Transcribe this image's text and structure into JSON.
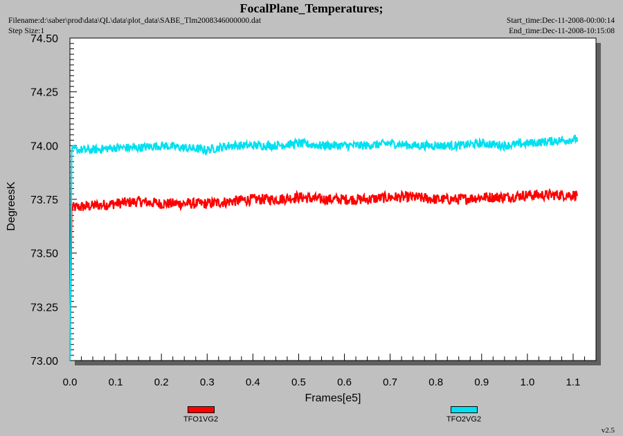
{
  "header": {
    "title": "FocalPlane_Temperatures;",
    "filename": "Filename:d:\\saber\\prod\\data\\QL\\data\\plot_data\\SABE_Tlm2008346000000.dat",
    "step_size": "Step Size:1",
    "start_time": "Start_time:Dec-11-2008-00:00:14",
    "end_time": "End_time:Dec-11-2008-10:15:08"
  },
  "footer": {
    "version": "v2.5"
  },
  "chart_data": {
    "type": "line",
    "title": "FocalPlane_Temperatures;",
    "xlabel": "Frames[e5]",
    "ylabel": "DegreesK",
    "xlim": [
      0.0,
      1.15
    ],
    "ylim": [
      73.0,
      74.5
    ],
    "xticks": [
      "0.0",
      "0.1",
      "0.2",
      "0.3",
      "0.4",
      "0.5",
      "0.6",
      "0.7",
      "0.8",
      "0.9",
      "1.0",
      "1.1"
    ],
    "yticks": [
      "73.00",
      "73.25",
      "73.50",
      "73.75",
      "74.00",
      "74.25",
      "74.50"
    ],
    "grid": false,
    "legend_position": "bottom",
    "series": [
      {
        "name": "TFO1VG2",
        "color": "#ff0000",
        "x": [
          0.0,
          0.05,
          0.1,
          0.15,
          0.2,
          0.25,
          0.3,
          0.35,
          0.4,
          0.45,
          0.5,
          0.55,
          0.6,
          0.65,
          0.7,
          0.75,
          0.8,
          0.85,
          0.9,
          0.95,
          1.0,
          1.05,
          1.11
        ],
        "y": [
          73.71,
          73.72,
          73.73,
          73.74,
          73.73,
          73.73,
          73.73,
          73.74,
          73.75,
          73.75,
          73.76,
          73.75,
          73.75,
          73.75,
          73.76,
          73.76,
          73.75,
          73.75,
          73.76,
          73.76,
          73.77,
          73.77,
          73.77
        ],
        "noise": 0.025
      },
      {
        "name": "TFO2VG2",
        "color": "#00e0f0",
        "x": [
          0.0,
          0.05,
          0.1,
          0.15,
          0.2,
          0.25,
          0.3,
          0.35,
          0.4,
          0.45,
          0.5,
          0.55,
          0.6,
          0.65,
          0.7,
          0.75,
          0.8,
          0.85,
          0.9,
          0.95,
          1.0,
          1.05,
          1.11
        ],
        "y": [
          73.98,
          73.98,
          73.99,
          73.99,
          74.0,
          73.99,
          73.98,
          74.0,
          74.0,
          74.0,
          74.01,
          74.0,
          74.0,
          74.0,
          74.01,
          74.0,
          74.0,
          74.0,
          74.01,
          74.0,
          74.01,
          74.02,
          74.03
        ],
        "noise": 0.02
      }
    ]
  }
}
